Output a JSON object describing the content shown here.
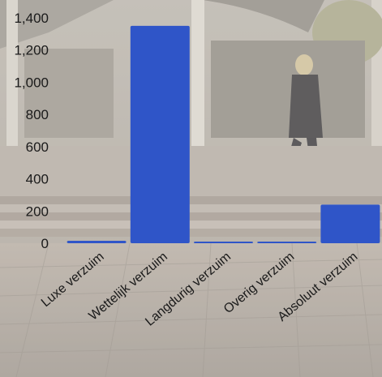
{
  "chart_data": {
    "type": "bar",
    "categories": [
      "Luxe verzuim",
      "Wettelijk verzuim",
      "Langdurig verzuim",
      "Overig verzuim",
      "Absoluut verzuim"
    ],
    "values": [
      15,
      1350,
      5,
      10,
      240
    ],
    "ylim": [
      0,
      1450
    ],
    "yticks": [
      0,
      200,
      400,
      600,
      800,
      1000,
      1200,
      1400
    ],
    "ytick_labels": [
      "0",
      "200",
      "400",
      "600",
      "800",
      "1,000",
      "1,200",
      "1,400"
    ],
    "grid": false,
    "legend": "none",
    "bar_color": "#2f55c8",
    "background": "street photograph (faded)"
  }
}
